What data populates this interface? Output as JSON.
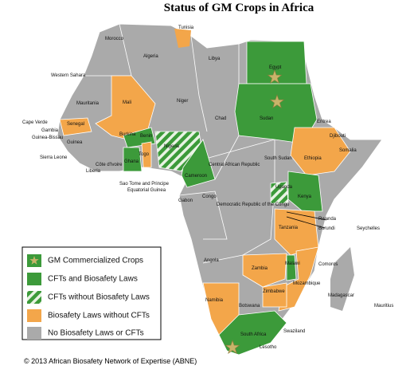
{
  "title": "Status of GM Crops in Africa",
  "legend": [
    "GM Commercialized Crops",
    "CFTs and Biosafety Laws",
    "CFTs without Biosafety Laws",
    "Biosafety Laws without CFTs",
    "No Biosafety Laws or CFTs"
  ],
  "countries": [
    "Tunisia",
    "Morocco",
    "Algeria",
    "Libya",
    "Egypt",
    "Western Sahara",
    "Mauritania",
    "Mali",
    "Niger",
    "Chad",
    "Sudan",
    "Eritrea",
    "Djibouti",
    "Somalia",
    "Ethiopia",
    "Cape Verde",
    "Senegal",
    "Gambia",
    "Guinea-Bissau",
    "Guinea",
    "Burkina",
    "Benin",
    "Nigeria",
    "Togo",
    "Sierra Leone",
    "Côte d'Ivoire",
    "Ghana",
    "Liberia",
    "South Sudan",
    "Central African Republic",
    "Cameroon",
    "Sao Tome and Principe",
    "Equatorial Guinea",
    "Gabon",
    "Congo",
    "Democratic Republic of the Congo",
    "Uganda",
    "Kenya",
    "Rwanda",
    "Burundi",
    "Seychelles",
    "Tanzania",
    "Angola",
    "Zambia",
    "Malawi",
    "Comoros",
    "Mozambique",
    "Zimbabwe",
    "Namibia",
    "Botswana",
    "Madagascar",
    "Mauritius",
    "Swaziland",
    "South Africa",
    "Lesotho"
  ],
  "copyright": "© 2013 African Biosafety Network of Expertise (ABNE)"
}
